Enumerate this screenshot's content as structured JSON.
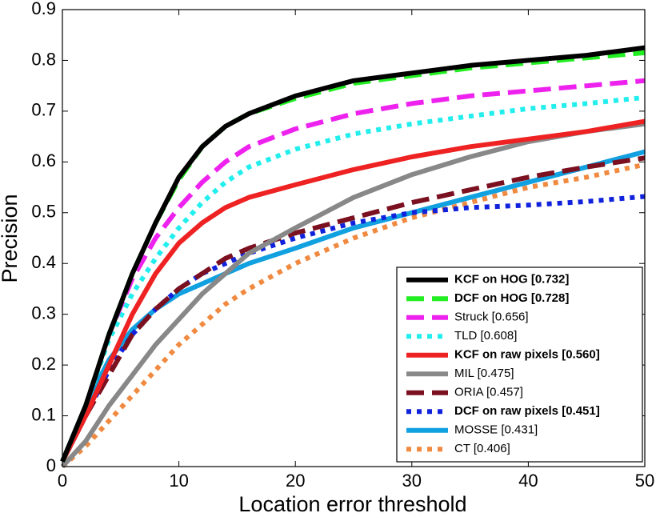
{
  "chart_data": {
    "type": "line",
    "xlabel": "Location error threshold",
    "ylabel": "Precision",
    "x": [
      0,
      2,
      4,
      6,
      8,
      10,
      12,
      14,
      16,
      20,
      25,
      30,
      35,
      40,
      45,
      50
    ],
    "xlim": [
      0,
      50
    ],
    "xticks": [
      0,
      10,
      20,
      30,
      40,
      50
    ],
    "ylim": [
      0,
      0.9
    ],
    "yticks": [
      0,
      0.1,
      0.2,
      0.3,
      0.4,
      0.5,
      0.6,
      0.7,
      0.8,
      0.9
    ],
    "legend": "lower right",
    "series": [
      {
        "name": "KCF on HOG [0.732]",
        "color": "#000000",
        "dash": "solid",
        "bold": true,
        "values": [
          0.01,
          0.12,
          0.26,
          0.38,
          0.48,
          0.57,
          0.63,
          0.67,
          0.695,
          0.73,
          0.76,
          0.775,
          0.79,
          0.8,
          0.81,
          0.825
        ]
      },
      {
        "name": "DCF on HOG [0.728]",
        "color": "#22ee22",
        "dash": "dashed",
        "bold": true,
        "values": [
          0.01,
          0.12,
          0.26,
          0.38,
          0.48,
          0.565,
          0.63,
          0.67,
          0.695,
          0.725,
          0.755,
          0.77,
          0.785,
          0.795,
          0.805,
          0.815
        ]
      },
      {
        "name": "Struck [0.656]",
        "color": "#ee22ee",
        "dash": "dashed",
        "bold": false,
        "values": [
          0.01,
          0.12,
          0.26,
          0.37,
          0.45,
          0.51,
          0.56,
          0.6,
          0.63,
          0.665,
          0.695,
          0.715,
          0.73,
          0.74,
          0.75,
          0.76
        ]
      },
      {
        "name": "TLD [0.608]",
        "color": "#22eeee",
        "dash": "dotted",
        "bold": false,
        "values": [
          0.01,
          0.12,
          0.25,
          0.34,
          0.41,
          0.47,
          0.52,
          0.56,
          0.59,
          0.625,
          0.655,
          0.675,
          0.69,
          0.705,
          0.715,
          0.727
        ]
      },
      {
        "name": "KCF on raw pixels [0.560]",
        "color": "#ee2222",
        "dash": "solid",
        "bold": true,
        "values": [
          0.01,
          0.1,
          0.2,
          0.3,
          0.38,
          0.44,
          0.48,
          0.51,
          0.53,
          0.555,
          0.585,
          0.61,
          0.63,
          0.645,
          0.66,
          0.68
        ]
      },
      {
        "name": "MIL [0.475]",
        "color": "#888888",
        "dash": "solid",
        "bold": false,
        "values": [
          0.0,
          0.05,
          0.12,
          0.18,
          0.24,
          0.29,
          0.34,
          0.38,
          0.42,
          0.47,
          0.53,
          0.575,
          0.61,
          0.64,
          0.66,
          0.675
        ]
      },
      {
        "name": "ORIA [0.457]",
        "color": "#7a1020",
        "dash": "dashed",
        "bold": false,
        "values": [
          0.01,
          0.1,
          0.18,
          0.26,
          0.31,
          0.35,
          0.38,
          0.41,
          0.43,
          0.46,
          0.49,
          0.52,
          0.545,
          0.57,
          0.59,
          0.608
        ]
      },
      {
        "name": "DCF on raw pixels [0.451]",
        "color": "#1122dd",
        "dash": "dotted",
        "bold": true,
        "values": [
          0.01,
          0.1,
          0.19,
          0.26,
          0.31,
          0.35,
          0.38,
          0.4,
          0.42,
          0.45,
          0.48,
          0.5,
          0.51,
          0.515,
          0.522,
          0.532
        ]
      },
      {
        "name": "MOSSE [0.431]",
        "color": "#11a0e0",
        "dash": "solid",
        "bold": false,
        "values": [
          0.01,
          0.12,
          0.21,
          0.27,
          0.31,
          0.34,
          0.36,
          0.38,
          0.4,
          0.43,
          0.47,
          0.5,
          0.53,
          0.56,
          0.59,
          0.62
        ]
      },
      {
        "name": "CT [0.406]",
        "color": "#f08a40",
        "dash": "dotted",
        "bold": false,
        "values": [
          0.0,
          0.04,
          0.09,
          0.14,
          0.19,
          0.24,
          0.28,
          0.32,
          0.35,
          0.4,
          0.45,
          0.49,
          0.52,
          0.55,
          0.57,
          0.595
        ]
      }
    ]
  }
}
